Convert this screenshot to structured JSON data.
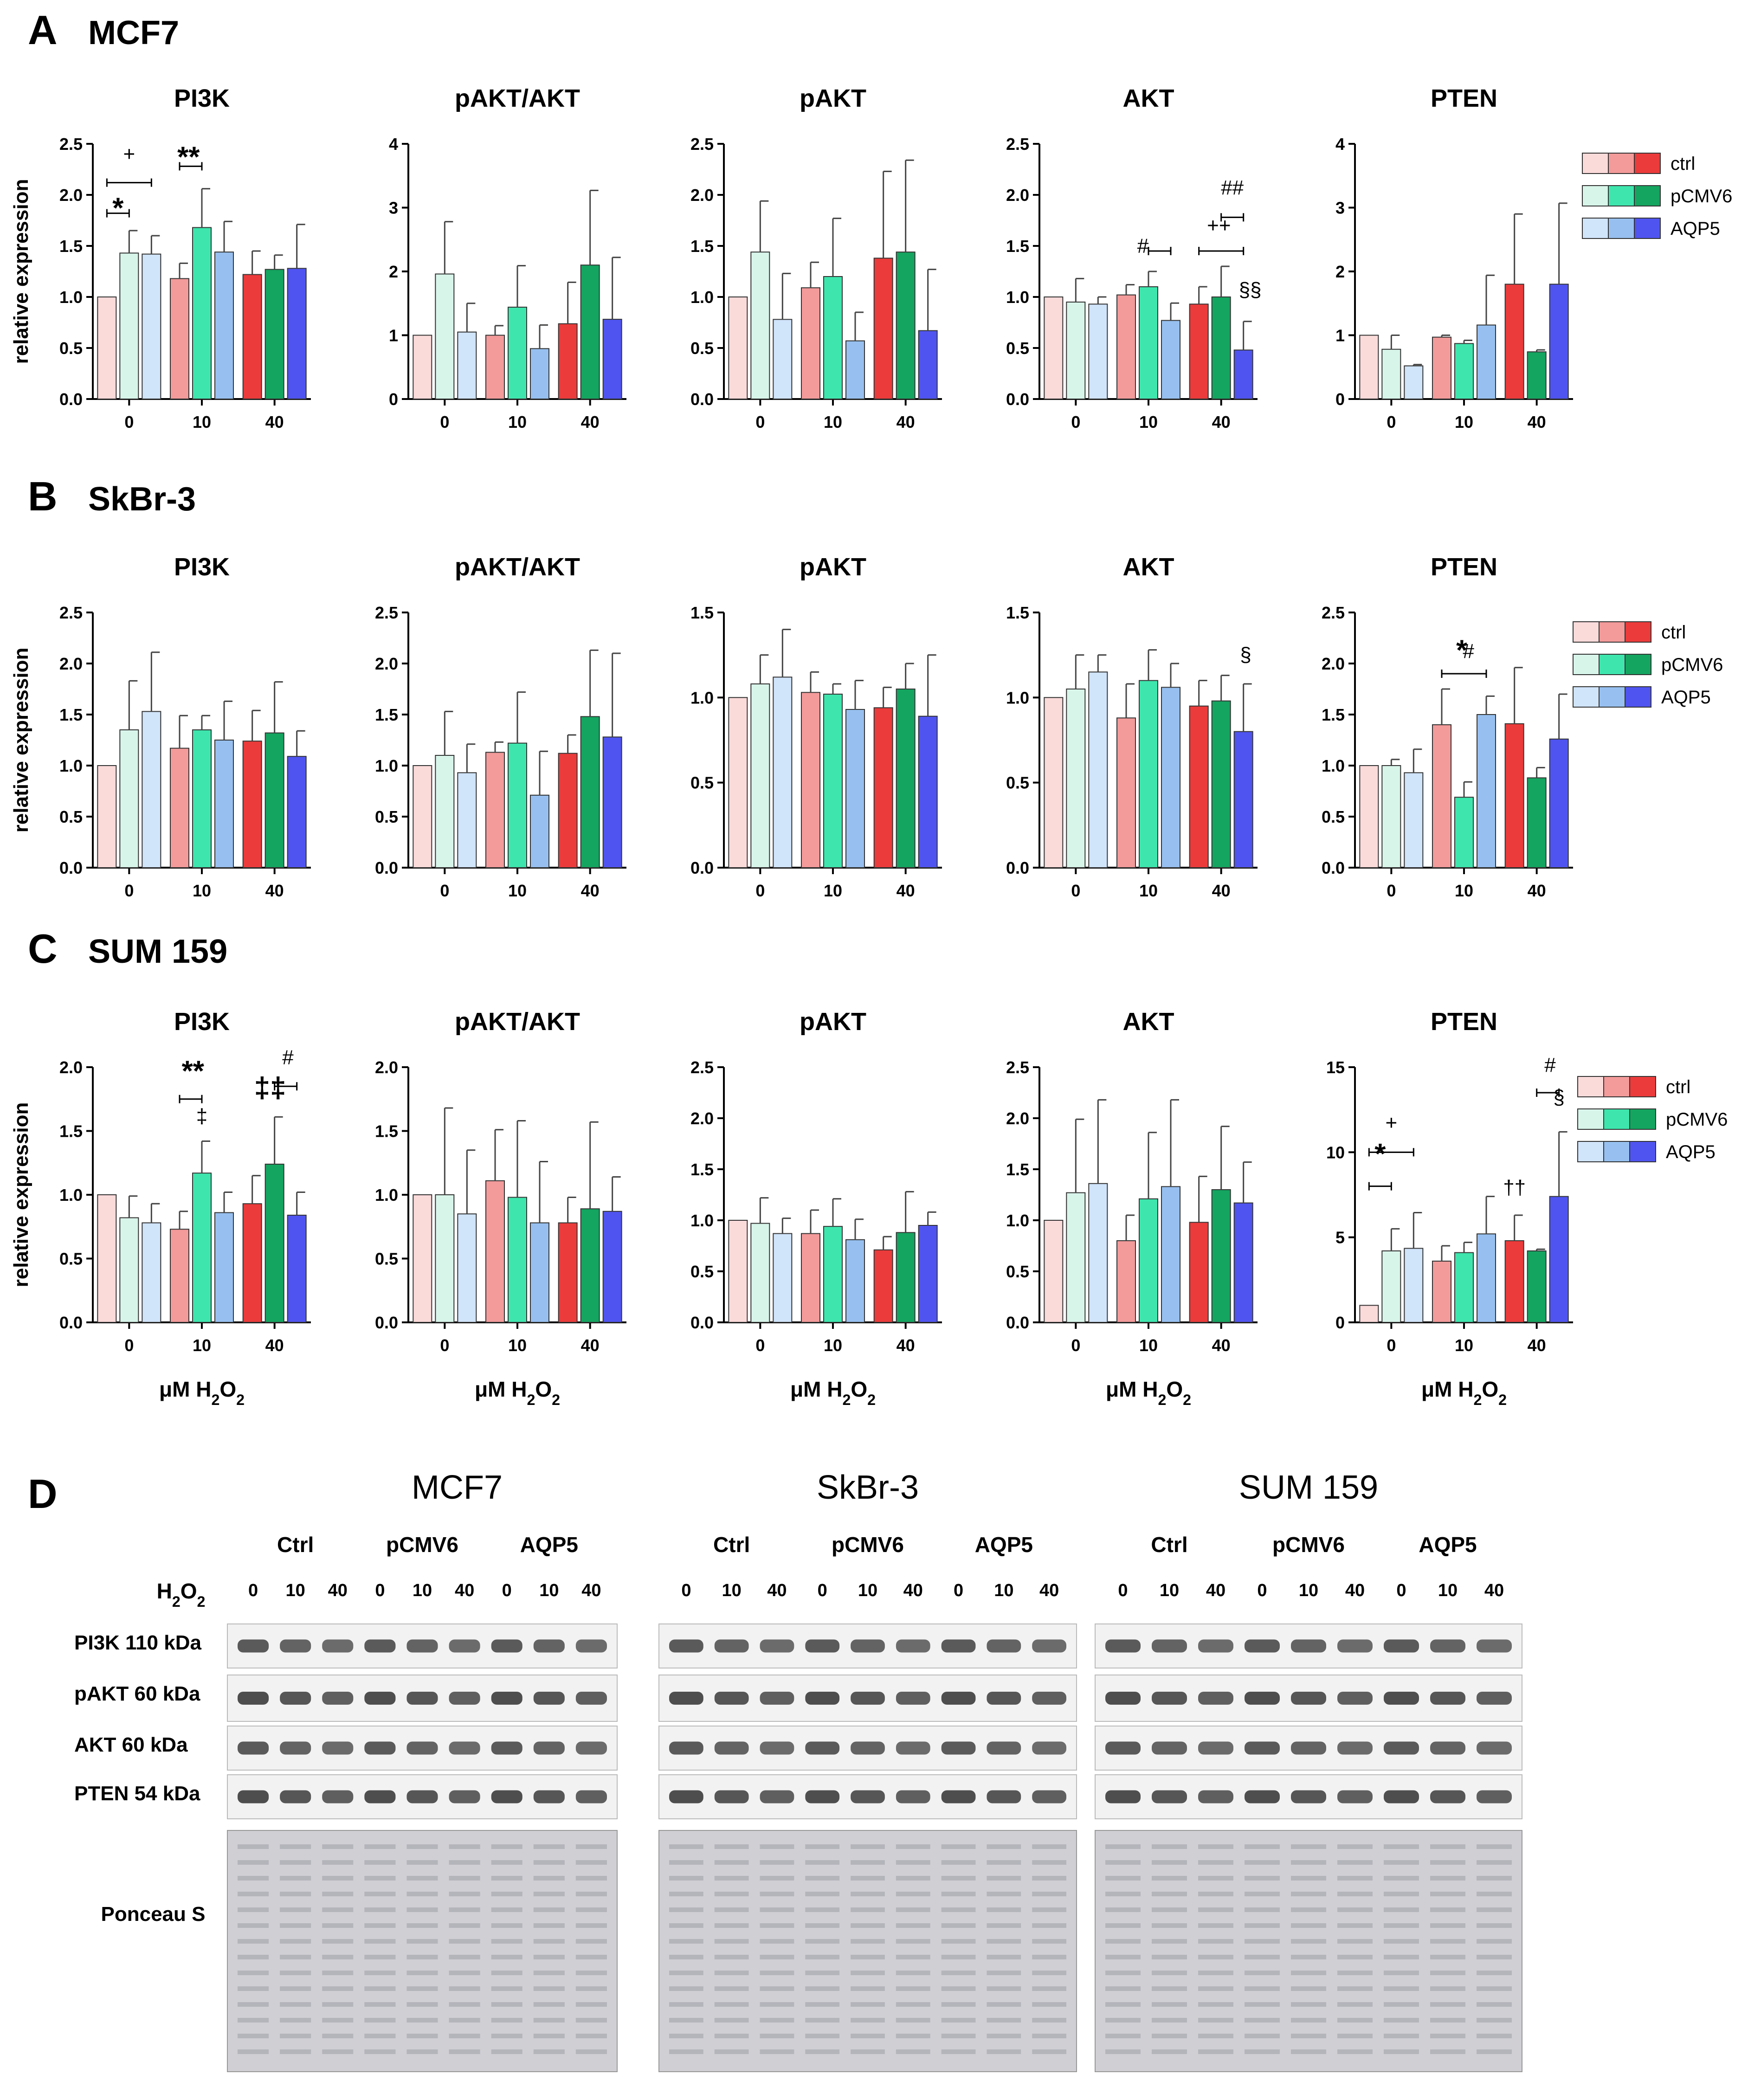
{
  "colors": {
    "ctrl": [
      "#fbdada",
      "#f39a9a",
      "#ec3b3b"
    ],
    "pCMV6": [
      "#d8f5ea",
      "#3ee6ad",
      "#14a560"
    ],
    "AQP5": [
      "#d0e4fa",
      "#97c0f0",
      "#4f54f0"
    ]
  },
  "legend": [
    "ctrl",
    "pCMV6",
    "AQP5"
  ],
  "y_axis_label": "relative expression",
  "x_axis_label": "μM H₂O₂",
  "x_axis_label_parts": {
    "main": "μM H",
    "sub1": "2",
    "mid": "O",
    "sub2": "2"
  },
  "rows": [
    {
      "letter": "A",
      "title": "MCF7"
    },
    {
      "letter": "B",
      "title": "SkBr-3"
    },
    {
      "letter": "C",
      "title": "SUM 159"
    }
  ],
  "chart_data": [
    {
      "type": "bar",
      "cell_line": "MCF7",
      "title": "PI3K",
      "categories": [
        "0",
        "10",
        "40"
      ],
      "ylim": [
        0,
        2.5
      ],
      "yticks": [
        0,
        0.5,
        1,
        1.5,
        2,
        2.5
      ],
      "series": [
        {
          "name": "ctrl",
          "values": [
            1.0,
            1.18,
            1.22
          ],
          "errors": [
            0,
            0.15,
            0.23
          ]
        },
        {
          "name": "pCMV6",
          "values": [
            1.43,
            1.68,
            1.27
          ],
          "errors": [
            0.22,
            0.38,
            0.14
          ]
        },
        {
          "name": "AQP5",
          "values": [
            1.42,
            1.44,
            1.28
          ],
          "errors": [
            0.18,
            0.3,
            0.43
          ]
        }
      ],
      "annotations": [
        "*",
        "+",
        "**"
      ]
    },
    {
      "type": "bar",
      "cell_line": "MCF7",
      "title": "pAKT/AKT",
      "categories": [
        "0",
        "10",
        "40"
      ],
      "ylim": [
        0,
        4
      ],
      "yticks": [
        0,
        1,
        2,
        3,
        4
      ],
      "series": [
        {
          "name": "ctrl",
          "values": [
            1.0,
            1.0,
            1.18
          ],
          "errors": [
            0,
            0.15,
            0.65
          ]
        },
        {
          "name": "pCMV6",
          "values": [
            1.96,
            1.44,
            2.1
          ],
          "errors": [
            0.82,
            0.65,
            1.17
          ]
        },
        {
          "name": "AQP5",
          "values": [
            1.05,
            0.79,
            1.25
          ],
          "errors": [
            0.45,
            0.37,
            0.97
          ]
        }
      ],
      "annotations": []
    },
    {
      "type": "bar",
      "cell_line": "MCF7",
      "title": "pAKT",
      "categories": [
        "0",
        "10",
        "40"
      ],
      "ylim": [
        0,
        2.5
      ],
      "yticks": [
        0,
        0.5,
        1,
        1.5,
        2,
        2.5
      ],
      "series": [
        {
          "name": "ctrl",
          "values": [
            1.0,
            1.09,
            1.38
          ],
          "errors": [
            0,
            0.25,
            0.85
          ]
        },
        {
          "name": "pCMV6",
          "values": [
            1.44,
            1.2,
            1.44
          ],
          "errors": [
            0.5,
            0.57,
            0.9
          ]
        },
        {
          "name": "AQP5",
          "values": [
            0.78,
            0.57,
            0.67
          ],
          "errors": [
            0.45,
            0.28,
            0.6
          ]
        }
      ],
      "annotations": []
    },
    {
      "type": "bar",
      "cell_line": "MCF7",
      "title": "AKT",
      "categories": [
        "0",
        "10",
        "40"
      ],
      "ylim": [
        0,
        2.5
      ],
      "yticks": [
        0,
        0.5,
        1,
        1.5,
        2,
        2.5
      ],
      "series": [
        {
          "name": "ctrl",
          "values": [
            1.0,
            1.02,
            0.93
          ],
          "errors": [
            0,
            0.1,
            0.17
          ]
        },
        {
          "name": "pCMV6",
          "values": [
            0.95,
            1.1,
            1.0
          ],
          "errors": [
            0.23,
            0.15,
            0.3
          ]
        },
        {
          "name": "AQP5",
          "values": [
            0.93,
            0.77,
            0.48
          ],
          "errors": [
            0.07,
            0.17,
            0.28
          ]
        }
      ],
      "annotations": [
        "#",
        "##",
        "++",
        "§§"
      ]
    },
    {
      "type": "bar",
      "cell_line": "MCF7",
      "title": "PTEN",
      "categories": [
        "0",
        "10",
        "40"
      ],
      "ylim": [
        0,
        4
      ],
      "yticks": [
        0,
        1,
        2,
        3,
        4
      ],
      "series": [
        {
          "name": "ctrl",
          "values": [
            1.0,
            0.97,
            1.8
          ],
          "errors": [
            0,
            0.03,
            1.1
          ]
        },
        {
          "name": "pCMV6",
          "values": [
            0.78,
            0.87,
            0.74
          ],
          "errors": [
            0.22,
            0.05,
            0.03
          ]
        },
        {
          "name": "AQP5",
          "values": [
            0.52,
            1.16,
            1.8
          ],
          "errors": [
            0.02,
            0.78,
            1.27
          ]
        }
      ],
      "annotations": []
    },
    {
      "type": "bar",
      "cell_line": "SkBr-3",
      "title": "PI3K",
      "categories": [
        "0",
        "10",
        "40"
      ],
      "ylim": [
        0,
        2.5
      ],
      "yticks": [
        0,
        0.5,
        1,
        1.5,
        2,
        2.5
      ],
      "series": [
        {
          "name": "ctrl",
          "values": [
            1.0,
            1.17,
            1.24
          ],
          "errors": [
            0,
            0.32,
            0.3
          ]
        },
        {
          "name": "pCMV6",
          "values": [
            1.35,
            1.35,
            1.32
          ],
          "errors": [
            0.48,
            0.14,
            0.5
          ]
        },
        {
          "name": "AQP5",
          "values": [
            1.53,
            1.25,
            1.09
          ],
          "errors": [
            0.58,
            0.38,
            0.25
          ]
        }
      ],
      "annotations": []
    },
    {
      "type": "bar",
      "cell_line": "SkBr-3",
      "title": "pAKT/AKT",
      "categories": [
        "0",
        "10",
        "40"
      ],
      "ylim": [
        0,
        2.5
      ],
      "yticks": [
        0,
        0.5,
        1,
        1.5,
        2,
        2.5
      ],
      "series": [
        {
          "name": "ctrl",
          "values": [
            1.0,
            1.13,
            1.12
          ],
          "errors": [
            0,
            0.1,
            0.18
          ]
        },
        {
          "name": "pCMV6",
          "values": [
            1.1,
            1.22,
            1.48
          ],
          "errors": [
            0.43,
            0.5,
            0.65
          ]
        },
        {
          "name": "AQP5",
          "values": [
            0.93,
            0.71,
            1.28
          ],
          "errors": [
            0.28,
            0.43,
            0.82
          ]
        }
      ],
      "annotations": []
    },
    {
      "type": "bar",
      "cell_line": "SkBr-3",
      "title": "pAKT",
      "categories": [
        "0",
        "10",
        "40"
      ],
      "ylim": [
        0,
        1.5
      ],
      "yticks": [
        0,
        0.5,
        1,
        1.5
      ],
      "series": [
        {
          "name": "ctrl",
          "values": [
            1.0,
            1.03,
            0.94
          ],
          "errors": [
            0,
            0.12,
            0.12
          ]
        },
        {
          "name": "pCMV6",
          "values": [
            1.08,
            1.02,
            1.05
          ],
          "errors": [
            0.17,
            0.06,
            0.15
          ]
        },
        {
          "name": "AQP5",
          "values": [
            1.12,
            0.93,
            0.89
          ],
          "errors": [
            0.28,
            0.17,
            0.36
          ]
        }
      ],
      "annotations": []
    },
    {
      "type": "bar",
      "cell_line": "SkBr-3",
      "title": "AKT",
      "categories": [
        "0",
        "10",
        "40"
      ],
      "ylim": [
        0,
        1.5
      ],
      "yticks": [
        0,
        0.5,
        1,
        1.5
      ],
      "series": [
        {
          "name": "ctrl",
          "values": [
            1.0,
            0.88,
            0.95
          ],
          "errors": [
            0,
            0.2,
            0.15
          ]
        },
        {
          "name": "pCMV6",
          "values": [
            1.05,
            1.1,
            0.98
          ],
          "errors": [
            0.2,
            0.18,
            0.15
          ]
        },
        {
          "name": "AQP5",
          "values": [
            1.15,
            1.06,
            0.8
          ],
          "errors": [
            0.1,
            0.14,
            0.28
          ]
        }
      ],
      "annotations": [
        "§"
      ]
    },
    {
      "type": "bar",
      "cell_line": "SkBr-3",
      "title": "PTEN",
      "categories": [
        "0",
        "10",
        "40"
      ],
      "ylim": [
        0,
        2.5
      ],
      "yticks": [
        0,
        0.5,
        1,
        1.5,
        2,
        2.5
      ],
      "series": [
        {
          "name": "ctrl",
          "values": [
            1.0,
            1.4,
            1.41
          ],
          "errors": [
            0,
            0.35,
            0.55
          ]
        },
        {
          "name": "pCMV6",
          "values": [
            1.0,
            0.69,
            0.88
          ],
          "errors": [
            0.06,
            0.15,
            0.1
          ]
        },
        {
          "name": "AQP5",
          "values": [
            0.93,
            1.5,
            1.26
          ],
          "errors": [
            0.23,
            0.18,
            0.44
          ]
        }
      ],
      "annotations": [
        "*",
        "#"
      ]
    },
    {
      "type": "bar",
      "cell_line": "SUM 159",
      "title": "PI3K",
      "categories": [
        "0",
        "10",
        "40"
      ],
      "ylim": [
        0,
        2.0
      ],
      "yticks": [
        0,
        0.5,
        1,
        1.5,
        2
      ],
      "series": [
        {
          "name": "ctrl",
          "values": [
            1.0,
            0.73,
            0.93
          ],
          "errors": [
            0,
            0.14,
            0.22
          ]
        },
        {
          "name": "pCMV6",
          "values": [
            0.82,
            1.17,
            1.24
          ],
          "errors": [
            0.17,
            0.25,
            0.37
          ]
        },
        {
          "name": "AQP5",
          "values": [
            0.78,
            0.86,
            0.84
          ],
          "errors": [
            0.15,
            0.16,
            0.18
          ]
        }
      ],
      "annotations": [
        "**",
        "‡",
        "#",
        "‡‡"
      ]
    },
    {
      "type": "bar",
      "cell_line": "SUM 159",
      "title": "pAKT/AKT",
      "categories": [
        "0",
        "10",
        "40"
      ],
      "ylim": [
        0,
        2.0
      ],
      "yticks": [
        0,
        0.5,
        1,
        1.5,
        2
      ],
      "series": [
        {
          "name": "ctrl",
          "values": [
            1.0,
            1.11,
            0.78
          ],
          "errors": [
            0,
            0.4,
            0.2
          ]
        },
        {
          "name": "pCMV6",
          "values": [
            1.0,
            0.98,
            0.89
          ],
          "errors": [
            0.68,
            0.6,
            0.68
          ]
        },
        {
          "name": "AQP5",
          "values": [
            0.85,
            0.78,
            0.87
          ],
          "errors": [
            0.5,
            0.48,
            0.27
          ]
        }
      ],
      "annotations": []
    },
    {
      "type": "bar",
      "cell_line": "SUM 159",
      "title": "pAKT",
      "categories": [
        "0",
        "10",
        "40"
      ],
      "ylim": [
        0,
        2.5
      ],
      "yticks": [
        0,
        0.5,
        1,
        1.5,
        2,
        2.5
      ],
      "series": [
        {
          "name": "ctrl",
          "values": [
            1.0,
            0.87,
            0.71
          ],
          "errors": [
            0,
            0.23,
            0.13
          ]
        },
        {
          "name": "pCMV6",
          "values": [
            0.97,
            0.94,
            0.88
          ],
          "errors": [
            0.25,
            0.27,
            0.4
          ]
        },
        {
          "name": "AQP5",
          "values": [
            0.87,
            0.81,
            0.95
          ],
          "errors": [
            0.15,
            0.2,
            0.13
          ]
        }
      ],
      "annotations": []
    },
    {
      "type": "bar",
      "cell_line": "SUM 159",
      "title": "AKT",
      "categories": [
        "0",
        "10",
        "40"
      ],
      "ylim": [
        0,
        2.5
      ],
      "yticks": [
        0,
        0.5,
        1,
        1.5,
        2,
        2.5
      ],
      "series": [
        {
          "name": "ctrl",
          "values": [
            1.0,
            0.8,
            0.98
          ],
          "errors": [
            0,
            0.25,
            0.45
          ]
        },
        {
          "name": "pCMV6",
          "values": [
            1.27,
            1.21,
            1.3
          ],
          "errors": [
            0.72,
            0.65,
            0.62
          ]
        },
        {
          "name": "AQP5",
          "values": [
            1.36,
            1.33,
            1.17
          ],
          "errors": [
            0.82,
            0.85,
            0.4
          ]
        }
      ],
      "annotations": []
    },
    {
      "type": "bar",
      "cell_line": "SUM 159",
      "title": "PTEN",
      "categories": [
        "0",
        "10",
        "40"
      ],
      "ylim": [
        0,
        15
      ],
      "yticks": [
        0,
        5,
        10,
        15
      ],
      "series": [
        {
          "name": "ctrl",
          "values": [
            1.0,
            3.6,
            4.8
          ],
          "errors": [
            0,
            0.9,
            1.5
          ]
        },
        {
          "name": "pCMV6",
          "values": [
            4.2,
            4.1,
            4.2
          ],
          "errors": [
            1.3,
            0.6,
            0.1
          ]
        },
        {
          "name": "AQP5",
          "values": [
            4.35,
            5.2,
            7.4
          ],
          "errors": [
            2.1,
            2.2,
            3.8
          ]
        }
      ],
      "annotations": [
        "*",
        "+",
        "#",
        "§",
        "††"
      ]
    }
  ],
  "blots": {
    "letter": "D",
    "h2o2_label": "H₂O₂",
    "h2o2_label_parts": {
      "main": "H",
      "sub1": "2",
      "mid": "O",
      "sub2": "2"
    },
    "row_labels": [
      "PI3K 110 kDa",
      "pAKT 60 kDa",
      "AKT 60 kDa",
      "PTEN 54 kDa",
      "Ponceau S"
    ],
    "groups": [
      "Ctrl",
      "pCMV6",
      "AQP5"
    ],
    "lanes": [
      "0",
      "10",
      "40",
      "0",
      "10",
      "40",
      "0",
      "10",
      "40"
    ],
    "cell_lines": [
      "MCF7",
      "SkBr-3",
      "SUM 159"
    ]
  }
}
